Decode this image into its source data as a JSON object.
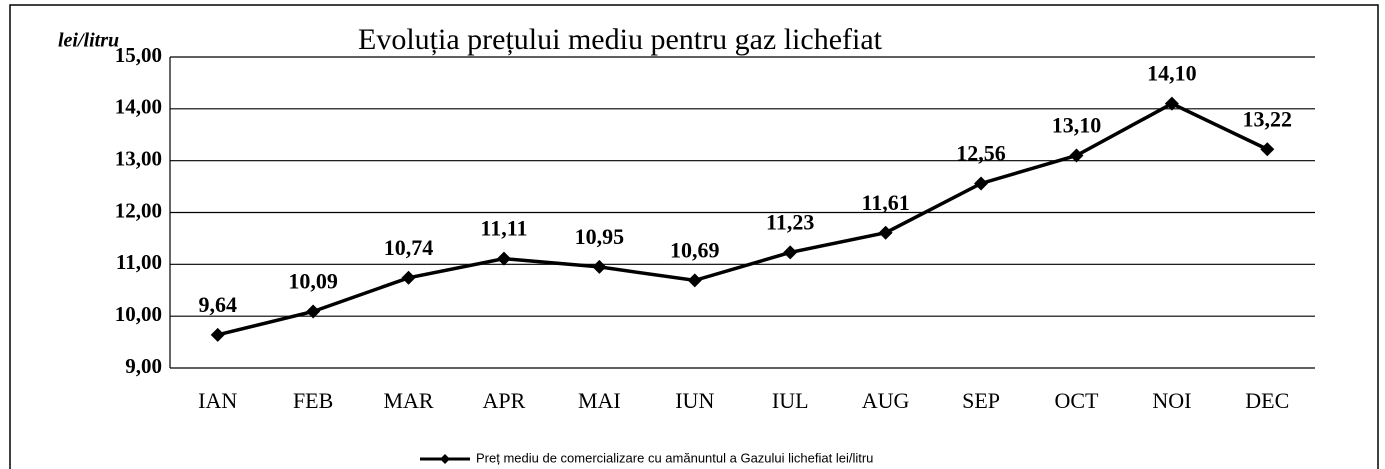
{
  "chart_data": {
    "type": "line",
    "title": "Evoluția prețului mediu pentru gaz lichefiat",
    "y_label": "lei/litru",
    "categories": [
      "IAN",
      "FEB",
      "MAR",
      "APR",
      "MAI",
      "IUN",
      "IUL",
      "AUG",
      "SEP",
      "OCT",
      "NOI",
      "DEC"
    ],
    "series": [
      {
        "name": "Preț mediu de comercializare cu amănuntul a Gazului lichefiat lei/litru",
        "color": "#000000",
        "values": [
          9.64,
          10.09,
          10.74,
          11.11,
          10.95,
          10.69,
          11.23,
          11.61,
          12.56,
          13.1,
          14.1,
          13.22
        ],
        "value_labels": [
          "9,64",
          "10,09",
          "10,74",
          "11,11",
          "10,95",
          "10,69",
          "11,23",
          "11,61",
          "12,56",
          "13,10",
          "14,10",
          "13,22"
        ]
      }
    ],
    "ylim": [
      9,
      15
    ],
    "yticks": [
      {
        "value": 9,
        "label": "9,00"
      },
      {
        "value": 10,
        "label": "10,00"
      },
      {
        "value": 11,
        "label": "11,00"
      },
      {
        "value": 12,
        "label": "12,00"
      },
      {
        "value": 13,
        "label": "13,00"
      },
      {
        "value": 14,
        "label": "14,00"
      },
      {
        "value": 15,
        "label": "15,00"
      }
    ],
    "grid": true,
    "legend": "bottom"
  }
}
